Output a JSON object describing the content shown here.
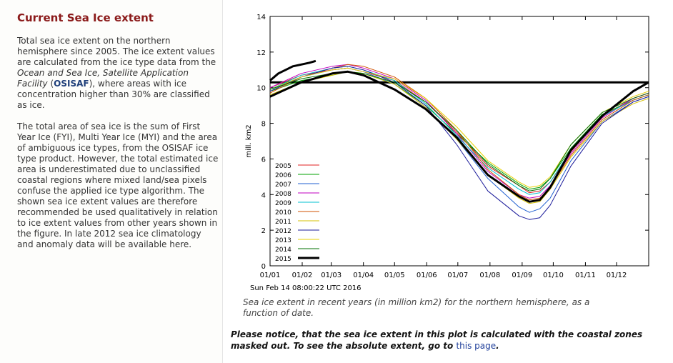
{
  "sidebar": {
    "title": "Current Sea Ice extent",
    "p1": {
      "t1": "Total sea ice extent on the northern hemisphere since 2005. The ice extent values are calculated from the ice type data from the ",
      "t2": "Ocean and Sea Ice, Satellite Application Facility",
      "t3": " (",
      "t4": "OSISAF",
      "t5": "), where areas with ice concentration higher than 30% are classified as ice."
    },
    "p2": "The total area of sea ice is the sum of First Year Ice (FYI), Multi Year Ice (MYI) and the area of ambiguous ice types, from the OSISAF ice type product. However, the total estimated ice area is underestimated due to unclassified coastal regions where mixed land/sea pixels confuse the applied ice type algorithm. The shown sea ice extent values are therefore recommended be used qualitatively in relation to ice extent values from other years shown in the figure. In late 2012 sea ice climatology and anomaly data will be available here."
  },
  "timestamp": "Sun Feb 14 08:00:22 UTC 2016",
  "caption": "Sea ice extent in recent years (in million km2) for the northern hemisphere, as a function of date.",
  "notice": {
    "text": "Please notice, that the sea ice extent in this plot is calculated with the coastal zones masked out. To see the absolute extent, go to ",
    "link": "this page",
    "end": "."
  },
  "chart_data": {
    "type": "line",
    "ylabel": "mill. km2",
    "ylim": [
      0,
      14
    ],
    "yticks": [
      "0",
      "2",
      "4",
      "6",
      "8",
      "10",
      "12",
      "14"
    ],
    "xticks": [
      "01/01",
      "01/02",
      "01/03",
      "01/04",
      "01/05",
      "01/06",
      "01/07",
      "01/08",
      "01/09",
      "01/10",
      "01/11",
      "01/12"
    ],
    "xlim_days": [
      0,
      365
    ],
    "x_unit": "day of year",
    "reference_line": 10.3,
    "legend_position": "lower-left",
    "key_days": [
      0,
      30,
      60,
      75,
      90,
      120,
      150,
      180,
      210,
      240,
      250,
      260,
      270,
      290,
      320,
      350,
      365
    ],
    "series": [
      {
        "name": "2005",
        "color": "#e02020",
        "width": 1,
        "values": [
          10.0,
          10.7,
          11.0,
          11.1,
          10.9,
          10.4,
          9.2,
          7.5,
          5.6,
          4.5,
          4.1,
          4.2,
          4.7,
          6.4,
          8.4,
          9.4,
          9.7
        ]
      },
      {
        "name": "2006",
        "color": "#00a000",
        "width": 1,
        "values": [
          9.8,
          10.4,
          10.7,
          10.9,
          10.8,
          10.2,
          9.0,
          7.4,
          5.8,
          4.6,
          4.3,
          4.4,
          4.9,
          6.6,
          8.5,
          9.3,
          9.6
        ]
      },
      {
        "name": "2007",
        "color": "#1f5fd0",
        "width": 1,
        "values": [
          9.9,
          10.6,
          11.0,
          11.1,
          10.9,
          10.2,
          8.9,
          7.1,
          4.9,
          3.3,
          3.0,
          3.2,
          3.8,
          5.9,
          8.1,
          9.2,
          9.5
        ]
      },
      {
        "name": "2008",
        "color": "#c000c0",
        "width": 1,
        "values": [
          10.0,
          10.8,
          11.2,
          11.3,
          11.1,
          10.5,
          9.3,
          7.4,
          5.3,
          4.0,
          3.8,
          3.9,
          4.5,
          6.3,
          8.3,
          9.4,
          9.7
        ]
      },
      {
        "name": "2009",
        "color": "#00c0d0",
        "width": 1,
        "values": [
          9.9,
          10.7,
          11.1,
          11.2,
          11.0,
          10.4,
          9.1,
          7.3,
          5.5,
          4.3,
          4.0,
          4.1,
          4.7,
          6.5,
          8.4,
          9.3,
          9.6
        ]
      },
      {
        "name": "2010",
        "color": "#d05000",
        "width": 1,
        "values": [
          9.7,
          10.6,
          11.1,
          11.3,
          11.2,
          10.6,
          9.4,
          7.6,
          5.4,
          4.0,
          3.7,
          3.8,
          4.4,
          6.2,
          8.2,
          9.3,
          9.6
        ]
      },
      {
        "name": "2011",
        "color": "#d4c000",
        "width": 1,
        "values": [
          9.6,
          10.3,
          10.7,
          10.9,
          10.8,
          10.2,
          8.9,
          7.1,
          5.1,
          3.8,
          3.5,
          3.6,
          4.3,
          6.1,
          8.1,
          9.1,
          9.4
        ]
      },
      {
        "name": "2012",
        "color": "#1a1a9a",
        "width": 1,
        "values": [
          9.8,
          10.6,
          11.1,
          11.2,
          11.0,
          10.3,
          9.0,
          6.8,
          4.2,
          2.8,
          2.6,
          2.7,
          3.4,
          5.6,
          8.0,
          9.2,
          9.5
        ]
      },
      {
        "name": "2013",
        "color": "#e8d000",
        "width": 1,
        "values": [
          9.9,
          10.6,
          11.0,
          11.1,
          10.9,
          10.5,
          9.4,
          7.8,
          5.9,
          4.7,
          4.4,
          4.5,
          5.0,
          6.8,
          8.6,
          9.5,
          9.8
        ]
      },
      {
        "name": "2014",
        "color": "#007000",
        "width": 1,
        "values": [
          9.9,
          10.5,
          10.8,
          10.9,
          10.8,
          10.3,
          9.2,
          7.6,
          5.7,
          4.5,
          4.2,
          4.3,
          4.9,
          6.8,
          8.6,
          9.4,
          9.7
        ]
      },
      {
        "name": "2015",
        "color": "#000000",
        "width": 3,
        "values": [
          9.5,
          10.3,
          10.8,
          10.9,
          10.7,
          9.9,
          8.8,
          7.2,
          5.1,
          3.9,
          3.6,
          3.7,
          4.4,
          6.5,
          8.4,
          9.8,
          10.3
        ]
      }
    ],
    "series_2016": {
      "color": "#000000",
      "width": 3,
      "x_days": [
        0,
        8,
        15,
        22,
        30,
        38,
        44
      ],
      "values": [
        10.4,
        10.8,
        11.0,
        11.2,
        11.3,
        11.4,
        11.5
      ]
    }
  }
}
